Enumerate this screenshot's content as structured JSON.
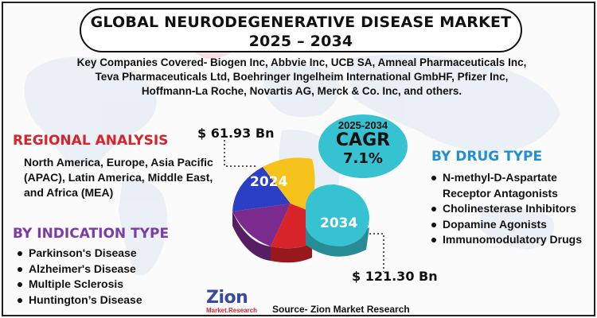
{
  "title": {
    "line1": "GLOBAL NEURODEGENERATIVE DISEASE MARKET",
    "line2": "2025 – 2034"
  },
  "companies": "Key Companies Covered- Biogen Inc, Abbvie Inc, UCB SA, Amneal Pharmaceuticals Inc, Teva Pharmaceuticals Ltd, Boehringer Ingelheim International GmbHF, Pfizer Inc, Hoffmann-La Roche, Novartis AG, Merck & Co. Inc, and others.",
  "regional": {
    "heading": "REGIONAL ANALYSIS",
    "text": "North America, Europe, Asia Pacific (APAC), Latin America, Middle East, and Africa (MEA)"
  },
  "indication": {
    "heading": "BY INDICATION TYPE",
    "items": [
      "Parkinson's Disease",
      "Alzheimer's Disease",
      "Multiple Sclerosis",
      "Huntington’s Disease"
    ]
  },
  "drug": {
    "heading": "BY DRUG TYPE",
    "items": [
      "N-methyl-D-Aspartate Receptor Antagonists",
      "Cholinesterase Inhibitors",
      "Dopamine Agonists",
      "Immunomodulatory Drugs"
    ]
  },
  "cagr": {
    "years": "2025-2034",
    "label": "CAGR",
    "value": "7.1%"
  },
  "market": {
    "year_start": "2024",
    "value_start": "$ 61.93 Bn",
    "year_end": "2034",
    "value_end": "$ 121.30 Bn"
  },
  "pie_colors": {
    "blue": "#2b3fc4",
    "yellow": "#f6c21c",
    "red": "#d7232a",
    "purple": "#7b2b8e",
    "teal": "#37c2d2"
  },
  "logo": {
    "name": "Zion",
    "sub": "Market.Research"
  },
  "source": "Source- Zion Market Research"
}
